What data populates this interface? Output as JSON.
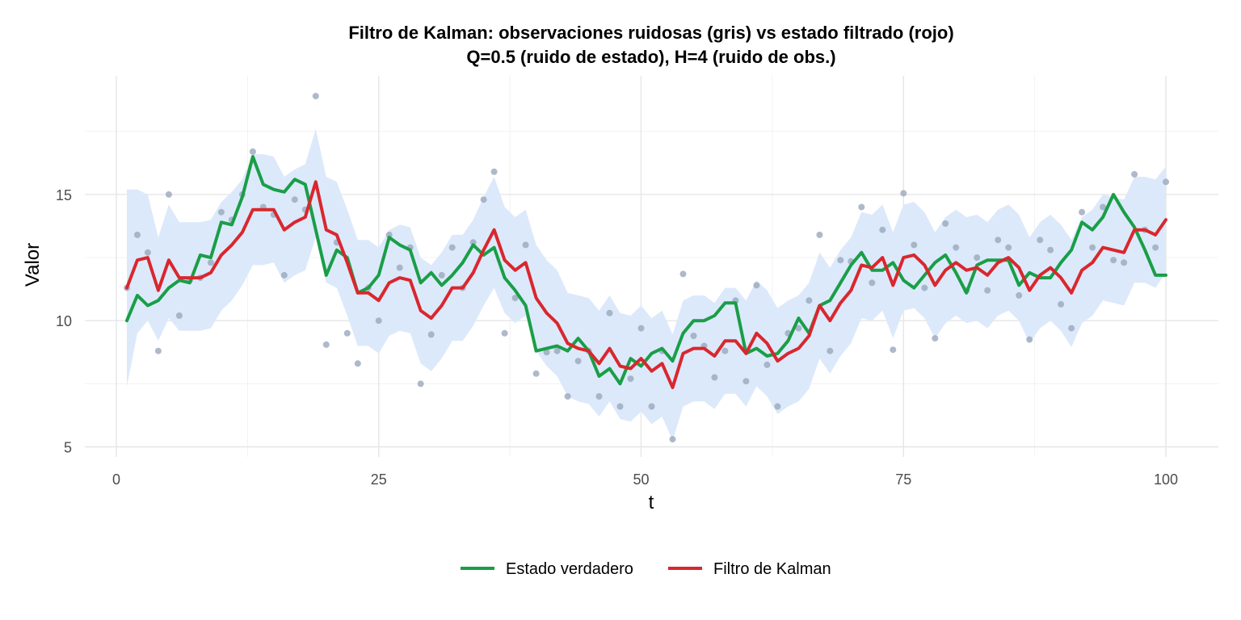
{
  "chart_data": {
    "type": "line",
    "title": "Filtro de Kalman: observaciones ruidosas (gris) vs estado filtrado (rojo)",
    "subtitle": "Q=0.5 (ruido de estado),  H=4 (ruido de obs.)",
    "xlabel": "t",
    "ylabel": "Valor",
    "xlim": [
      -3,
      105
    ],
    "ylim": [
      4.6,
      19.7
    ],
    "x_ticks": [
      0,
      25,
      50,
      75,
      100
    ],
    "y_ticks": [
      5,
      10,
      15
    ],
    "grid": true,
    "legend_position": "bottom",
    "x": [
      1,
      2,
      3,
      4,
      5,
      6,
      7,
      8,
      9,
      10,
      11,
      12,
      13,
      14,
      15,
      16,
      17,
      18,
      19,
      20,
      21,
      22,
      23,
      24,
      25,
      26,
      27,
      28,
      29,
      30,
      31,
      32,
      33,
      34,
      35,
      36,
      37,
      38,
      39,
      40,
      41,
      42,
      43,
      44,
      45,
      46,
      47,
      48,
      49,
      50,
      51,
      52,
      53,
      54,
      55,
      56,
      57,
      58,
      59,
      60,
      61,
      62,
      63,
      64,
      65,
      66,
      67,
      68,
      69,
      70,
      71,
      72,
      73,
      74,
      75,
      76,
      77,
      78,
      79,
      80,
      81,
      82,
      83,
      84,
      85,
      86,
      87,
      88,
      89,
      90,
      91,
      92,
      93,
      94,
      95,
      96,
      97,
      98,
      99,
      100
    ],
    "observations": {
      "name": "Observaciones",
      "color": "#9aa7bd",
      "values": [
        11.3,
        13.4,
        12.7,
        8.8,
        15.0,
        10.2,
        11.6,
        11.7,
        12.3,
        14.3,
        14.0,
        15.0,
        16.7,
        14.5,
        14.2,
        11.8,
        14.8,
        14.4,
        18.9,
        9.05,
        13.1,
        9.5,
        8.3,
        11.3,
        10.0,
        13.4,
        12.1,
        12.9,
        7.5,
        9.45,
        11.8,
        12.9,
        11.3,
        13.1,
        14.8,
        15.9,
        9.5,
        10.9,
        13.0,
        7.9,
        8.75,
        8.8,
        7.0,
        8.4,
        8.8,
        7.0,
        10.3,
        6.6,
        7.7,
        9.7,
        6.6,
        8.8,
        5.3,
        11.85,
        9.4,
        9.0,
        7.75,
        8.8,
        10.8,
        7.6,
        11.4,
        8.25,
        6.6,
        9.5,
        9.7,
        10.8,
        13.4,
        8.8,
        12.4,
        12.35,
        14.5,
        11.5,
        13.6,
        8.85,
        15.05,
        13.0,
        11.3,
        9.3,
        13.85,
        12.9,
        11.2,
        12.5,
        11.2,
        13.2,
        12.9,
        11.0,
        9.25,
        13.2,
        12.8,
        10.65,
        9.7,
        14.3,
        12.9,
        14.5,
        12.4,
        12.3,
        15.8,
        13.6,
        12.9,
        15.5
      ]
    },
    "series": [
      {
        "name": "Estado verdadero",
        "color": "#1a9e47",
        "values": [
          10.0,
          11.0,
          10.6,
          10.8,
          11.3,
          11.6,
          11.5,
          12.6,
          12.5,
          13.9,
          13.8,
          14.9,
          16.5,
          15.4,
          15.2,
          15.1,
          15.6,
          15.4,
          13.6,
          11.8,
          12.8,
          12.5,
          11.1,
          11.3,
          11.8,
          13.3,
          13.0,
          12.8,
          11.5,
          11.9,
          11.4,
          11.8,
          12.3,
          13.0,
          12.6,
          12.9,
          11.7,
          11.2,
          10.6,
          8.8,
          8.9,
          9.0,
          8.8,
          9.3,
          8.8,
          7.8,
          8.1,
          7.5,
          8.5,
          8.2,
          8.7,
          8.9,
          8.4,
          9.5,
          10.0,
          10.0,
          10.2,
          10.7,
          10.7,
          8.7,
          8.9,
          8.6,
          8.7,
          9.2,
          10.1,
          9.5,
          10.6,
          10.8,
          11.5,
          12.2,
          12.7,
          12.0,
          12.0,
          12.3,
          11.6,
          11.3,
          11.8,
          12.3,
          12.6,
          11.9,
          11.1,
          12.2,
          12.4,
          12.4,
          12.4,
          11.4,
          11.9,
          11.7,
          11.7,
          12.3,
          12.8,
          13.9,
          13.6,
          14.1,
          15.0,
          14.3,
          13.7,
          12.8,
          11.8,
          11.8
        ]
      },
      {
        "name": "Filtro de Kalman",
        "color": "#d9272e",
        "values": [
          11.3,
          12.4,
          12.5,
          11.2,
          12.4,
          11.7,
          11.7,
          11.7,
          11.9,
          12.6,
          13.0,
          13.5,
          14.4,
          14.4,
          14.4,
          13.6,
          13.9,
          14.1,
          15.5,
          13.6,
          13.4,
          12.3,
          11.1,
          11.1,
          10.8,
          11.5,
          11.7,
          11.6,
          10.4,
          10.1,
          10.6,
          11.3,
          11.3,
          11.9,
          12.8,
          13.6,
          12.4,
          12.0,
          12.3,
          10.9,
          10.3,
          9.9,
          9.1,
          8.9,
          8.8,
          8.3,
          8.9,
          8.2,
          8.1,
          8.5,
          8.0,
          8.3,
          7.35,
          8.7,
          8.9,
          8.9,
          8.6,
          9.2,
          9.2,
          8.7,
          9.5,
          9.1,
          8.4,
          8.7,
          8.9,
          9.4,
          10.6,
          10.0,
          10.7,
          11.2,
          12.2,
          12.1,
          12.5,
          11.4,
          12.5,
          12.6,
          12.2,
          11.4,
          12.0,
          12.3,
          12.0,
          12.1,
          11.8,
          12.3,
          12.5,
          12.1,
          11.2,
          11.8,
          12.1,
          11.7,
          11.1,
          12.0,
          12.3,
          12.9,
          12.8,
          12.7,
          13.6,
          13.6,
          13.4,
          14.0
        ]
      }
    ],
    "confidence_band": {
      "color": "#dce9fb",
      "lower": [
        7.4,
        9.5,
        10.0,
        9.2,
        10.1,
        9.6,
        9.6,
        9.6,
        9.7,
        10.4,
        10.8,
        11.4,
        12.2,
        12.2,
        12.3,
        11.5,
        11.8,
        12.0,
        13.3,
        11.5,
        11.3,
        10.2,
        9.0,
        9.0,
        8.7,
        9.4,
        9.6,
        9.5,
        8.3,
        8.0,
        8.5,
        9.2,
        9.2,
        9.8,
        10.6,
        11.3,
        10.3,
        9.9,
        10.2,
        8.8,
        8.2,
        7.8,
        7.0,
        6.8,
        6.7,
        6.2,
        6.8,
        6.1,
        6.0,
        6.4,
        5.9,
        6.2,
        5.25,
        6.6,
        6.8,
        6.8,
        6.5,
        7.1,
        7.1,
        6.6,
        7.4,
        7.0,
        6.3,
        6.6,
        6.8,
        7.3,
        8.5,
        7.9,
        8.6,
        9.1,
        10.1,
        10.0,
        10.4,
        9.3,
        10.4,
        10.5,
        10.1,
        9.3,
        9.9,
        10.2,
        9.9,
        10.0,
        9.7,
        10.2,
        10.4,
        10.0,
        9.1,
        9.7,
        10.0,
        9.6,
        8.95,
        9.9,
        10.2,
        10.8,
        10.7,
        10.6,
        11.5,
        11.5,
        11.3,
        11.9
      ],
      "upper": [
        15.2,
        15.2,
        15.0,
        13.3,
        14.6,
        13.9,
        13.9,
        13.9,
        14.0,
        14.7,
        15.1,
        15.6,
        16.6,
        16.6,
        16.5,
        15.7,
        16.0,
        16.2,
        17.6,
        15.7,
        15.5,
        14.4,
        13.2,
        13.2,
        12.9,
        13.6,
        13.8,
        13.7,
        12.5,
        12.2,
        12.7,
        13.4,
        13.4,
        14.0,
        14.9,
        15.7,
        14.5,
        14.1,
        14.4,
        13.0,
        12.4,
        12.0,
        11.1,
        11.0,
        10.9,
        10.4,
        11.0,
        10.3,
        10.2,
        10.6,
        10.1,
        10.4,
        9.45,
        10.8,
        11.0,
        11.0,
        10.7,
        11.3,
        11.3,
        10.8,
        11.6,
        11.2,
        10.5,
        10.8,
        11.0,
        11.5,
        12.7,
        12.1,
        12.8,
        13.3,
        14.3,
        14.2,
        14.6,
        13.5,
        14.6,
        14.7,
        14.3,
        13.5,
        14.1,
        14.4,
        14.1,
        14.2,
        13.9,
        14.4,
        14.6,
        14.2,
        13.3,
        13.9,
        14.2,
        13.8,
        13.2,
        14.1,
        14.4,
        15.0,
        14.9,
        14.8,
        15.7,
        15.7,
        15.6,
        16.1
      ]
    }
  }
}
